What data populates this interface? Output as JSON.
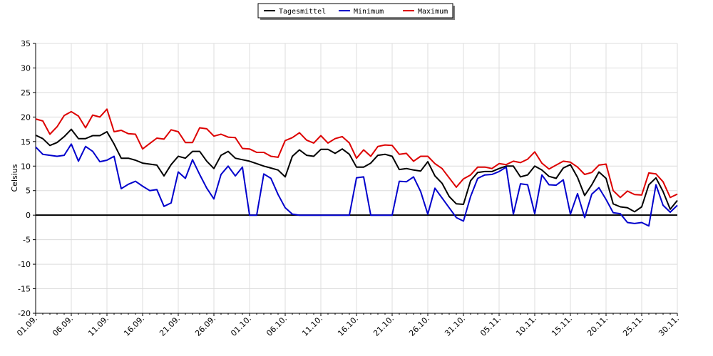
{
  "chart_data": {
    "type": "line",
    "title": "",
    "xlabel": "",
    "ylabel": "Celsius",
    "ylim": [
      -20,
      35
    ],
    "yticks": [
      35,
      30,
      25,
      20,
      15,
      10,
      5,
      0,
      -5,
      -10,
      -15,
      -20
    ],
    "grid": true,
    "legend_position": "top-center",
    "xtick_labels": [
      "01.09.",
      "06.09.",
      "11.09.",
      "16.09.",
      "21.09.",
      "26.09.",
      "01.10.",
      "06.10.",
      "11.10.",
      "16.10.",
      "21.10.",
      "26.10.",
      "31.10.",
      "05.11.",
      "10.11.",
      "15.11.",
      "20.11.",
      "25.11.",
      "30.11."
    ],
    "x_start_date": "01.09.",
    "series": [
      {
        "name": "Tagesmittel",
        "color": "#000000",
        "values": [
          16.3,
          15.6,
          14.2,
          14.8,
          16.0,
          17.5,
          15.6,
          15.6,
          16.2,
          16.2,
          17.0,
          14.5,
          11.6,
          11.6,
          11.2,
          10.6,
          10.4,
          10.2,
          8.0,
          10.3,
          12.0,
          11.6,
          13.0,
          13.0,
          11.0,
          9.5,
          12.2,
          13.0,
          11.6,
          11.3,
          11.0,
          10.5,
          10.0,
          9.6,
          9.2,
          7.8,
          12.0,
          13.3,
          12.2,
          12.0,
          13.4,
          13.4,
          12.6,
          13.5,
          12.4,
          9.8,
          9.8,
          10.6,
          12.2,
          12.4,
          12.0,
          9.3,
          9.5,
          9.2,
          9.0,
          10.9,
          8.0,
          6.5,
          3.8,
          2.3,
          2.2,
          7.0,
          8.7,
          8.9,
          8.9,
          9.5,
          10.0,
          10.0,
          7.8,
          8.2,
          10.0,
          9.2,
          7.9,
          7.5,
          9.6,
          10.3,
          7.7,
          4.0,
          6.2,
          8.8,
          7.5,
          2.3,
          1.7,
          1.5,
          0.7,
          1.7,
          6.2,
          7.6,
          4.8,
          1.2,
          3.0
        ]
      },
      {
        "name": "Minimum",
        "color": "#0000cc",
        "values": [
          13.9,
          12.4,
          12.2,
          12.0,
          12.2,
          14.5,
          11.0,
          14.0,
          13.0,
          10.9,
          11.2,
          12.0,
          5.4,
          6.3,
          6.9,
          5.9,
          5.0,
          5.2,
          1.8,
          2.5,
          8.8,
          7.5,
          11.3,
          8.3,
          5.5,
          3.3,
          8.3,
          10.0,
          8.0,
          9.8,
          0.0,
          0.0,
          8.4,
          7.5,
          4.2,
          1.5,
          0.2,
          0.0,
          0.0,
          0.0,
          0.0,
          0.0,
          0.0,
          0.0,
          0.0,
          7.6,
          7.8,
          0.0,
          0.0,
          0.0,
          0.0,
          6.9,
          6.8,
          7.8,
          4.8,
          0.2,
          5.5,
          3.5,
          1.5,
          -0.5,
          -1.2,
          3.8,
          7.5,
          8.2,
          8.3,
          8.9,
          9.8,
          0.2,
          6.4,
          6.2,
          0.3,
          8.2,
          6.2,
          6.1,
          7.2,
          0.2,
          4.4,
          -0.5,
          4.3,
          5.6,
          3.2,
          0.5,
          0.3,
          -1.5,
          -1.7,
          -1.5,
          -2.2,
          6.2,
          2.0,
          0.6,
          2.0
        ]
      },
      {
        "name": "Maximum",
        "color": "#dd0000",
        "values": [
          19.6,
          19.2,
          16.5,
          18.0,
          20.3,
          21.1,
          20.2,
          17.8,
          20.4,
          20.0,
          21.6,
          17.0,
          17.3,
          16.6,
          16.5,
          13.5,
          14.6,
          15.7,
          15.5,
          17.4,
          17.0,
          14.8,
          14.8,
          17.8,
          17.6,
          16.1,
          16.5,
          15.9,
          15.8,
          13.6,
          13.5,
          12.8,
          12.8,
          12.0,
          11.8,
          15.2,
          15.8,
          16.8,
          15.3,
          14.7,
          16.2,
          14.7,
          15.6,
          16.0,
          14.7,
          11.6,
          13.3,
          12.0,
          14.0,
          14.3,
          14.2,
          12.4,
          12.6,
          11.0,
          12.0,
          12.0,
          10.5,
          9.5,
          7.6,
          5.7,
          7.4,
          8.2,
          9.8,
          9.8,
          9.5,
          10.5,
          10.3,
          11.0,
          10.7,
          11.4,
          12.9,
          10.6,
          9.4,
          10.2,
          11.0,
          10.8,
          9.8,
          8.3,
          8.7,
          10.2,
          10.4,
          5.0,
          3.6,
          4.9,
          4.2,
          4.1,
          8.6,
          8.4,
          6.8,
          3.6,
          4.3
        ]
      }
    ]
  }
}
